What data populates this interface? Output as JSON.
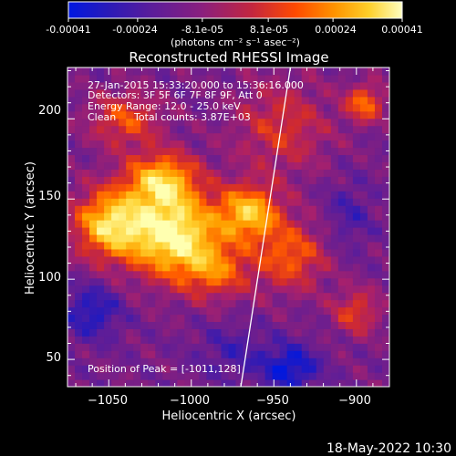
{
  "colorbar": {
    "tick_labels": [
      "-0.00041",
      "-0.00024",
      "-8.1e-05",
      "8.1e-05",
      "0.00024",
      "0.00041"
    ],
    "tick_values": [
      -0.00041,
      -0.00024,
      -8.1e-05,
      8.1e-05,
      0.00024,
      0.00041
    ],
    "range": [
      -0.00041,
      0.00041
    ],
    "unit_label": "(photons cm⁻² s⁻¹ asec⁻²)"
  },
  "annotations": {
    "line1": "27-Jan-2015 15:33:20.000 to 15:36:16.000",
    "line2": "Detectors: 3F 5F 6F 7F 8F 9F, Att 0",
    "line3": "Energy Range: 12.0 - 25.0 keV",
    "line4_method": "Clean",
    "line4_counts": "Total counts: 3.87E+03",
    "peak": "Position of Peak = [-1011,128]"
  },
  "footer": {
    "date": "18-May-2022 10:30"
  },
  "chart_data": {
    "type": "heatmap",
    "title": "Reconstructed RHESSI Image",
    "xlabel": "Heliocentric X (arcsec)",
    "ylabel": "Heliocentric Y (arcsec)",
    "xlim": [
      -1075,
      -880
    ],
    "ylim": [
      33,
      232
    ],
    "x_ticks": [
      -1050,
      -1000,
      -950,
      -900
    ],
    "x_tick_labels": [
      "−1050",
      "−1000",
      "−950",
      "−900"
    ],
    "y_ticks": [
      50,
      100,
      150,
      200
    ],
    "y_tick_labels": [
      "50",
      "100",
      "150",
      "200"
    ],
    "colorscale": [
      "#0018e0",
      "#2a1ab8",
      "#5b1d9a",
      "#7a1f86",
      "#a8206c",
      "#d32b2b",
      "#ff5a00",
      "#ffa000",
      "#ffd230",
      "#ffffb0"
    ],
    "limb_line": [
      [
        -970,
        33
      ],
      [
        -940,
        232
      ]
    ],
    "peak_position": [
      -1011,
      128
    ],
    "sources": [
      {
        "x": -1011,
        "y": 128,
        "sx": 20,
        "sy": 18,
        "amp": 1.0
      },
      {
        "x": -1050,
        "y": 135,
        "sx": 15,
        "sy": 15,
        "amp": 0.8
      },
      {
        "x": -1018,
        "y": 162,
        "sx": 15,
        "sy": 12,
        "amp": 0.75
      },
      {
        "x": -965,
        "y": 142,
        "sx": 13,
        "sy": 12,
        "amp": 0.75
      },
      {
        "x": -1040,
        "y": 200,
        "sx": 15,
        "sy": 12,
        "amp": 0.45
      },
      {
        "x": -985,
        "y": 105,
        "sx": 15,
        "sy": 12,
        "amp": 0.45
      },
      {
        "x": -940,
        "y": 115,
        "sx": 15,
        "sy": 15,
        "amp": 0.5
      },
      {
        "x": -945,
        "y": 195,
        "sx": 20,
        "sy": 20,
        "amp": 0.35
      },
      {
        "x": -895,
        "y": 210,
        "sx": 8,
        "sy": 8,
        "amp": 0.55
      },
      {
        "x": -900,
        "y": 80,
        "sx": 10,
        "sy": 10,
        "amp": 0.4
      },
      {
        "x": -1060,
        "y": 80,
        "sx": 12,
        "sy": 12,
        "amp": -0.35
      },
      {
        "x": -940,
        "y": 45,
        "sx": 12,
        "sy": 10,
        "amp": -0.45
      },
      {
        "x": -905,
        "y": 140,
        "sx": 10,
        "sy": 15,
        "amp": -0.2
      },
      {
        "x": -975,
        "y": 55,
        "sx": 15,
        "sy": 12,
        "amp": -0.2
      }
    ]
  }
}
